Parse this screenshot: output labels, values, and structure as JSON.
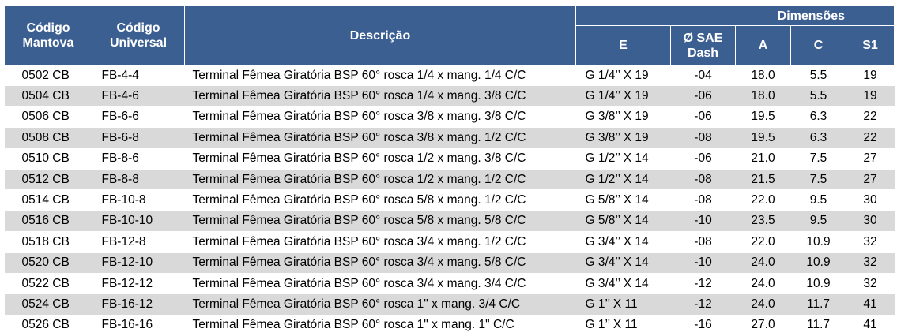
{
  "headers": {
    "codigo_mantova": "Código Mantova",
    "codigo_universal": "Código Universal",
    "descricao": "Descrição",
    "dimensoes": "Dimensões",
    "e": "E",
    "sae_dash": "Ø SAE Dash",
    "a": "A",
    "c": "C",
    "s1": "S1"
  },
  "rows": [
    {
      "mantova": "0502 CB",
      "universal": "FB-4-4",
      "descricao": "Terminal Fêmea Giratória BSP 60° rosca 1/4 x mang. 1/4 C/C",
      "e": "G 1/4’’ X 19",
      "dash": "-04",
      "a": "18.0",
      "c": "5.5",
      "s1": "19"
    },
    {
      "mantova": "0504 CB",
      "universal": "FB-4-6",
      "descricao": "Terminal Fêmea Giratória BSP 60° rosca 1/4 x mang. 3/8 C/C",
      "e": "G 1/4’’ X 19",
      "dash": "-06",
      "a": "18.0",
      "c": "5.5",
      "s1": "19"
    },
    {
      "mantova": "0506 CB",
      "universal": "FB-6-6",
      "descricao": "Terminal Fêmea Giratória BSP 60° rosca 3/8 x mang. 3/8 C/C",
      "e": "G 3/8’’ X 19",
      "dash": "-06",
      "a": "19.5",
      "c": "6.3",
      "s1": "22"
    },
    {
      "mantova": "0508 CB",
      "universal": "FB-6-8",
      "descricao": "Terminal Fêmea Giratória BSP 60° rosca 3/8 x mang. 1/2 C/C",
      "e": "G 3/8’’ X 19",
      "dash": "-08",
      "a": "19.5",
      "c": "6.3",
      "s1": "22"
    },
    {
      "mantova": "0510 CB",
      "universal": "FB-8-6",
      "descricao": "Terminal Fêmea Giratória BSP 60° rosca 1/2 x mang. 3/8 C/C",
      "e": "G 1/2’’ X 14",
      "dash": "-06",
      "a": "21.0",
      "c": "7.5",
      "s1": "27"
    },
    {
      "mantova": "0512 CB",
      "universal": "FB-8-8",
      "descricao": "Terminal Fêmea Giratória BSP 60° rosca 1/2 x mang. 1/2 C/C",
      "e": "G 1/2’’ X 14",
      "dash": "-08",
      "a": "21.5",
      "c": "7.5",
      "s1": "27"
    },
    {
      "mantova": "0514 CB",
      "universal": "FB-10-8",
      "descricao": "Terminal Fêmea Giratória BSP 60° rosca 5/8 x mang. 1/2 C/C",
      "e": "G 5/8’’ X 14",
      "dash": "-08",
      "a": "22.0",
      "c": "9.5",
      "s1": "30"
    },
    {
      "mantova": "0516 CB",
      "universal": "FB-10-10",
      "descricao": "Terminal Fêmea Giratória BSP 60° rosca 5/8 x mang. 5/8 C/C",
      "e": "G 5/8’’ X 14",
      "dash": "-10",
      "a": "23.5",
      "c": "9.5",
      "s1": "30"
    },
    {
      "mantova": "0518 CB",
      "universal": "FB-12-8",
      "descricao": "Terminal Fêmea Giratória BSP 60° rosca 3/4 x mang. 1/2 C/C",
      "e": "G 3/4’’ X 14",
      "dash": "-08",
      "a": "22.0",
      "c": "10.9",
      "s1": "32"
    },
    {
      "mantova": "0520 CB",
      "universal": "FB-12-10",
      "descricao": "Terminal Fêmea Giratória BSP 60° rosca 3/4 x mang. 5/8 C/C",
      "e": "G 3/4’’ X 14",
      "dash": "-10",
      "a": "24.0",
      "c": "10.9",
      "s1": "32"
    },
    {
      "mantova": "0522 CB",
      "universal": "FB-12-12",
      "descricao": "Terminal Fêmea Giratória BSP 60° rosca 3/4 x mang. 3/4 C/C",
      "e": "G 3/4’’ X 14",
      "dash": "-12",
      "a": "24.0",
      "c": "10.9",
      "s1": "32"
    },
    {
      "mantova": "0524 CB",
      "universal": "FB-16-12",
      "descricao": "Terminal Fêmea Giratória BSP 60° rosca 1\"   x mang. 3/4 C/C",
      "e": "G 1’’ X 11",
      "dash": "-12",
      "a": "24.0",
      "c": "11.7",
      "s1": "41"
    },
    {
      "mantova": "0526 CB",
      "universal": "FB-16-16",
      "descricao": "Terminal Fêmea Giratória BSP 60° rosca 1\"   x mang. 1\"   C/C",
      "e": "G 1’’ X 11",
      "dash": "-16",
      "a": "27.0",
      "c": "11.7",
      "s1": "41"
    }
  ]
}
